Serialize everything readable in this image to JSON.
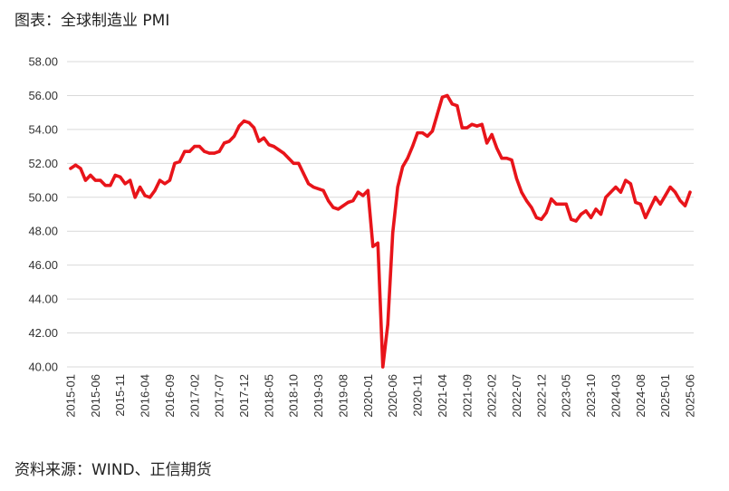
{
  "chart_data": {
    "type": "line",
    "title": "图表：全球制造业 PMI",
    "source": "资料来源：WIND、正信期货",
    "xlabel": "",
    "ylabel": "",
    "ylim": [
      40,
      58
    ],
    "yticks": [
      "40.00",
      "42.00",
      "44.00",
      "46.00",
      "48.00",
      "50.00",
      "52.00",
      "54.00",
      "56.00",
      "58.00"
    ],
    "xticks": [
      "2015-01",
      "2015-06",
      "2015-11",
      "2016-04",
      "2016-09",
      "2017-02",
      "2017-07",
      "2017-12",
      "2018-05",
      "2018-10",
      "2019-03",
      "2019-08",
      "2020-01",
      "2020-06",
      "2020-11",
      "2021-04",
      "2021-09",
      "2022-02",
      "2022-07",
      "2022-12",
      "2023-05",
      "2023-10",
      "2024-03",
      "2024-08",
      "2025-01",
      "2025-06"
    ],
    "grid": true,
    "legend": "none",
    "series": [
      {
        "color": "#e8141a",
        "x_start": "2015-01",
        "x_end": "2025-06",
        "values": [
          51.7,
          51.9,
          51.7,
          51.0,
          51.3,
          51.0,
          51.0,
          50.7,
          50.7,
          51.3,
          51.2,
          50.8,
          51.0,
          50.0,
          50.6,
          50.1,
          50.0,
          50.4,
          51.0,
          50.8,
          51.0,
          52.0,
          52.1,
          52.7,
          52.7,
          53.0,
          53.0,
          52.7,
          52.6,
          52.6,
          52.7,
          53.2,
          53.3,
          53.6,
          54.2,
          54.5,
          54.4,
          54.1,
          53.3,
          53.5,
          53.1,
          53.0,
          52.8,
          52.6,
          52.3,
          52.0,
          52.0,
          51.4,
          50.8,
          50.6,
          50.5,
          50.4,
          49.8,
          49.4,
          49.3,
          49.5,
          49.7,
          49.8,
          50.3,
          50.1,
          50.4,
          47.1,
          47.3,
          40.0,
          42.5,
          47.9,
          50.6,
          51.8,
          52.3,
          53.0,
          53.8,
          53.8,
          53.6,
          53.9,
          54.9,
          55.9,
          56.0,
          55.5,
          55.4,
          54.1,
          54.1,
          54.3,
          54.2,
          54.3,
          53.2,
          53.7,
          52.9,
          52.3,
          52.3,
          52.2,
          51.1,
          50.3,
          49.8,
          49.4,
          48.8,
          48.7,
          49.1,
          49.9,
          49.6,
          49.6,
          49.6,
          48.7,
          48.6,
          49.0,
          49.2,
          48.8,
          49.3,
          49.0,
          50.0,
          50.3,
          50.6,
          50.3,
          51.0,
          50.8,
          49.7,
          49.6,
          48.8,
          49.4,
          50.0,
          49.6,
          50.1,
          50.6,
          50.3,
          49.8,
          49.5,
          50.3
        ]
      }
    ]
  }
}
